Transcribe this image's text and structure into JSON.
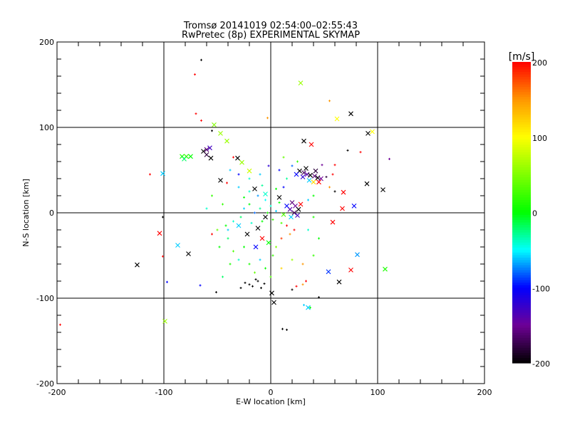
{
  "chart_data": {
    "type": "scatter",
    "title": "Tromsø 20141019 02:54:00–02:55:43",
    "subtitle": "RwPretec (8p) EXPERIMENTAL SKYMAP",
    "xlabel": "E-W location [km]",
    "ylabel": "N-S location [km]",
    "xlim": [
      -200,
      200
    ],
    "ylim": [
      -200,
      200
    ],
    "xticks": [
      "-200",
      "-100",
      "0",
      "100",
      "200"
    ],
    "yticks": [
      "-200",
      "-100",
      "0",
      "100",
      "200"
    ],
    "tick_values": [
      -200,
      -100,
      0,
      100,
      200
    ],
    "grid": true,
    "colorbar": {
      "label": "[m/s]",
      "range": [
        -200,
        200
      ],
      "ticks": [
        "200",
        "100",
        "0",
        "-100",
        "-200"
      ],
      "tick_values": [
        200,
        100,
        0,
        -100,
        -200
      ]
    },
    "point_format": "[x_km, y_km, velocity_m_s, marker(0=dot,1=cross)]",
    "points": [
      [
        75,
        116,
        -200,
        1
      ],
      [
        31,
        84,
        -200,
        1
      ],
      [
        38,
        80,
        200,
        1
      ],
      [
        28,
        152,
        60,
        1
      ],
      [
        62,
        110,
        100,
        1
      ],
      [
        95,
        95,
        100,
        1
      ],
      [
        91,
        93,
        -200,
        1
      ],
      [
        -47,
        38,
        -200,
        1
      ],
      [
        -31,
        64,
        -200,
        1
      ],
      [
        -101,
        46,
        -60,
        1
      ],
      [
        -104,
        -24,
        200,
        1
      ],
      [
        -77,
        -48,
        -200,
        1
      ],
      [
        -125,
        -61,
        -200,
        1
      ],
      [
        -87,
        -38,
        -60,
        1
      ],
      [
        1,
        -94,
        -200,
        1
      ],
      [
        3,
        -105,
        -200,
        1
      ],
      [
        35,
        -111,
        -60,
        1
      ],
      [
        -99,
        -127,
        60,
        1
      ],
      [
        75,
        -67,
        200,
        1
      ],
      [
        107,
        -66,
        10,
        1
      ],
      [
        64,
        -81,
        -200,
        1
      ],
      [
        54,
        -69,
        -90,
        1
      ],
      [
        81,
        -49,
        -70,
        1
      ],
      [
        105,
        27,
        -200,
        1
      ],
      [
        90,
        34,
        -200,
        1
      ],
      [
        78,
        8,
        -100,
        1
      ],
      [
        67,
        5,
        200,
        1
      ],
      [
        58,
        -11,
        200,
        1
      ],
      [
        68,
        24,
        200,
        1
      ],
      [
        -53,
        103,
        50,
        1
      ],
      [
        -47,
        93,
        60,
        1
      ],
      [
        -41,
        84,
        60,
        1
      ],
      [
        -27,
        59,
        60,
        1
      ],
      [
        -20,
        49,
        80,
        1
      ],
      [
        -83,
        66,
        10,
        1
      ],
      [
        -79,
        66,
        20,
        1
      ],
      [
        -75,
        66,
        0,
        1
      ],
      [
        -81,
        63,
        -20,
        1
      ],
      [
        -60,
        74,
        -160,
        1
      ],
      [
        -63,
        72,
        -200,
        1
      ],
      [
        -57,
        76,
        -130,
        1
      ],
      [
        -60,
        68,
        -180,
        1
      ],
      [
        -56,
        64,
        -200,
        1
      ],
      [
        27,
        49,
        -200,
        1
      ],
      [
        31,
        47,
        -170,
        1
      ],
      [
        34,
        45,
        -140,
        1
      ],
      [
        37,
        44,
        -200,
        1
      ],
      [
        41,
        43,
        -160,
        1
      ],
      [
        44,
        41,
        -200,
        1
      ],
      [
        47,
        40,
        -150,
        1
      ],
      [
        30,
        42,
        -120,
        1
      ],
      [
        36,
        38,
        -60,
        1
      ],
      [
        40,
        36,
        120,
        1
      ],
      [
        45,
        36,
        200,
        1
      ],
      [
        24,
        45,
        -100,
        1
      ],
      [
        33,
        52,
        -200,
        1
      ],
      [
        42,
        49,
        -180,
        1
      ],
      [
        20,
        12,
        -160,
        1
      ],
      [
        23,
        8,
        -150,
        1
      ],
      [
        26,
        4,
        -200,
        1
      ],
      [
        18,
        4,
        -140,
        1
      ],
      [
        22,
        0,
        -170,
        1
      ],
      [
        25,
        -3,
        -130,
        1
      ],
      [
        19,
        -5,
        -60,
        1
      ],
      [
        15,
        8,
        -100,
        1
      ],
      [
        28,
        10,
        200,
        1
      ],
      [
        12,
        -2,
        30,
        1
      ],
      [
        -5,
        -5,
        -200,
        1
      ],
      [
        -12,
        -18,
        -200,
        1
      ],
      [
        -8,
        -30,
        200,
        1
      ],
      [
        -22,
        -25,
        -200,
        1
      ],
      [
        -14,
        -40,
        -100,
        1
      ],
      [
        -2,
        -35,
        0,
        1
      ],
      [
        -30,
        -15,
        -60,
        1
      ],
      [
        -15,
        28,
        -200,
        1
      ],
      [
        -5,
        22,
        -40,
        1
      ],
      [
        8,
        18,
        -200,
        1
      ],
      [
        -65,
        179,
        -200,
        0
      ],
      [
        -71,
        162,
        200,
        0
      ],
      [
        -197,
        -131,
        200,
        0
      ],
      [
        111,
        63,
        -150,
        0
      ],
      [
        72,
        73,
        -200,
        0
      ],
      [
        -113,
        45,
        200,
        0
      ],
      [
        -101,
        -51,
        200,
        0
      ],
      [
        -101,
        -5,
        -200,
        0
      ],
      [
        -97,
        -81,
        -100,
        0
      ],
      [
        -70,
        116,
        200,
        0
      ],
      [
        -65,
        108,
        200,
        0
      ],
      [
        -55,
        96,
        -200,
        0
      ],
      [
        -3,
        111,
        150,
        0
      ],
      [
        55,
        131,
        150,
        0
      ],
      [
        84,
        71,
        200,
        0
      ],
      [
        60,
        56,
        200,
        0
      ],
      [
        -35,
        65,
        200,
        0
      ],
      [
        -41,
        35,
        200,
        0
      ],
      [
        -51,
        -93,
        -200,
        0
      ],
      [
        -20,
        -84,
        -200,
        0
      ],
      [
        -24,
        -82,
        -200,
        0
      ],
      [
        -17,
        -86,
        -200,
        0
      ],
      [
        -12,
        -80,
        -200,
        0
      ],
      [
        -9,
        -88,
        -200,
        0
      ],
      [
        -28,
        -88,
        -200,
        0
      ],
      [
        -14,
        -78,
        -200,
        0
      ],
      [
        -6,
        -83,
        -200,
        0
      ],
      [
        11,
        -136,
        -200,
        0
      ],
      [
        15,
        -137,
        -200,
        0
      ],
      [
        31,
        -108,
        -60,
        0
      ],
      [
        37,
        -111,
        0,
        0
      ],
      [
        24,
        -86,
        200,
        0
      ],
      [
        30,
        -84,
        150,
        0
      ],
      [
        20,
        -90,
        -200,
        0
      ],
      [
        33,
        -80,
        200,
        0
      ],
      [
        45,
        -99,
        -200,
        0
      ],
      [
        -66,
        -85,
        -100,
        0
      ],
      [
        -40,
        -20,
        -60,
        0
      ],
      [
        -42,
        -15,
        0,
        0
      ],
      [
        -35,
        -10,
        -40,
        0
      ],
      [
        -28,
        -5,
        -20,
        0
      ],
      [
        -25,
        5,
        -60,
        0
      ],
      [
        -20,
        10,
        0,
        0
      ],
      [
        -18,
        -12,
        -40,
        0
      ],
      [
        -15,
        0,
        -80,
        0
      ],
      [
        -10,
        5,
        -30,
        0
      ],
      [
        -8,
        -10,
        0,
        0
      ],
      [
        -5,
        15,
        -50,
        0
      ],
      [
        -3,
        0,
        10,
        0
      ],
      [
        0,
        8,
        -40,
        0
      ],
      [
        2,
        -8,
        20,
        0
      ],
      [
        5,
        2,
        -60,
        0
      ],
      [
        8,
        12,
        0,
        0
      ],
      [
        10,
        -12,
        30,
        0
      ],
      [
        -12,
        20,
        -70,
        0
      ],
      [
        -20,
        25,
        -40,
        0
      ],
      [
        -25,
        18,
        0,
        0
      ],
      [
        -30,
        30,
        -60,
        0
      ],
      [
        -8,
        32,
        -30,
        0
      ],
      [
        5,
        28,
        0,
        0
      ],
      [
        12,
        30,
        -100,
        0
      ],
      [
        15,
        -15,
        200,
        0
      ],
      [
        18,
        -25,
        150,
        0
      ],
      [
        22,
        -20,
        200,
        0
      ],
      [
        10,
        -30,
        180,
        0
      ],
      [
        5,
        -40,
        50,
        0
      ],
      [
        -25,
        -40,
        0,
        0
      ],
      [
        -30,
        -55,
        -40,
        0
      ],
      [
        -20,
        -60,
        10,
        0
      ],
      [
        -10,
        -55,
        -60,
        0
      ],
      [
        -35,
        -45,
        30,
        0
      ],
      [
        -5,
        -65,
        0,
        0
      ],
      [
        2,
        -50,
        20,
        0
      ],
      [
        -40,
        -30,
        -20,
        0
      ],
      [
        -15,
        -70,
        40,
        0
      ],
      [
        0,
        -75,
        30,
        0
      ],
      [
        10,
        -65,
        120,
        0
      ],
      [
        20,
        -55,
        60,
        0
      ],
      [
        30,
        -60,
        150,
        0
      ],
      [
        40,
        -50,
        20,
        0
      ],
      [
        45,
        -30,
        0,
        0
      ],
      [
        35,
        -20,
        -40,
        0
      ],
      [
        40,
        -5,
        10,
        0
      ],
      [
        35,
        15,
        -60,
        0
      ],
      [
        40,
        20,
        0,
        0
      ],
      [
        15,
        40,
        -30,
        0
      ],
      [
        20,
        55,
        -80,
        0
      ],
      [
        8,
        50,
        -100,
        0
      ],
      [
        -2,
        55,
        -120,
        0
      ],
      [
        -10,
        45,
        -60,
        0
      ],
      [
        -20,
        40,
        -40,
        0
      ],
      [
        25,
        60,
        20,
        0
      ],
      [
        12,
        65,
        40,
        0
      ],
      [
        48,
        56,
        -150,
        0
      ],
      [
        52,
        42,
        -180,
        0
      ],
      [
        58,
        45,
        200,
        0
      ],
      [
        55,
        30,
        150,
        0
      ],
      [
        60,
        25,
        -200,
        0
      ],
      [
        -45,
        10,
        20,
        0
      ],
      [
        -50,
        -20,
        40,
        0
      ],
      [
        -48,
        -40,
        0,
        0
      ],
      [
        -55,
        -25,
        200,
        0
      ],
      [
        -38,
        -60,
        10,
        0
      ],
      [
        -45,
        -75,
        -20,
        0
      ],
      [
        -60,
        5,
        -40,
        0
      ],
      [
        -55,
        20,
        20,
        0
      ],
      [
        -30,
        45,
        -100,
        0
      ],
      [
        -38,
        50,
        -60,
        0
      ]
    ]
  }
}
